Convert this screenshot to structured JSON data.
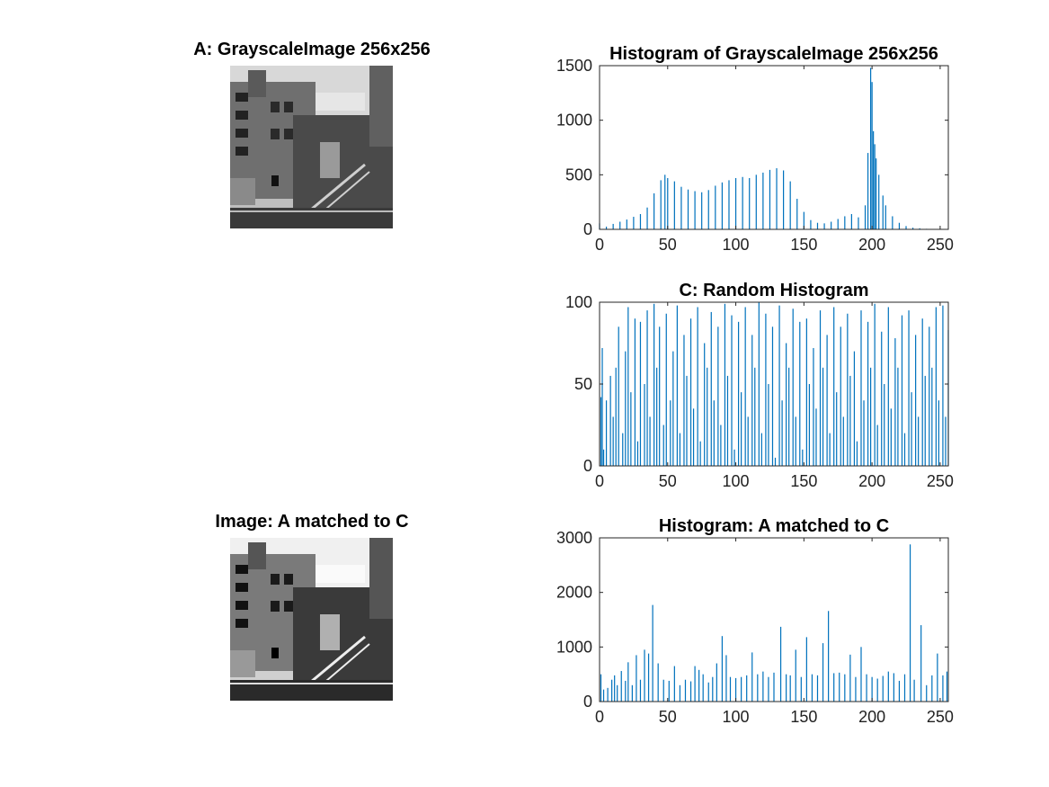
{
  "figure": {
    "panels": {
      "image_a": {
        "title": "A: GrayscaleImage 256x256",
        "icon": "building-photo-icon"
      },
      "image_matched": {
        "title": "Image: A matched to C",
        "icon": "building-photo-icon"
      }
    }
  },
  "chart_data": [
    {
      "type": "bar",
      "title": "Histogram of GrayscaleImage 256x256",
      "xlim": [
        0,
        256
      ],
      "ylim": [
        0,
        1500
      ],
      "xticks": [
        0,
        50,
        100,
        150,
        200,
        250
      ],
      "yticks": [
        0,
        500,
        1000,
        1500
      ],
      "bar_color": "#0072BD",
      "x": [
        0,
        5,
        10,
        15,
        20,
        25,
        30,
        35,
        40,
        45,
        48,
        50,
        55,
        60,
        65,
        70,
        75,
        80,
        85,
        90,
        95,
        100,
        105,
        110,
        115,
        120,
        125,
        130,
        135,
        140,
        145,
        150,
        155,
        160,
        165,
        170,
        175,
        180,
        185,
        190,
        195,
        197,
        199,
        200,
        201,
        202,
        203,
        205,
        208,
        210,
        215,
        220,
        225,
        230,
        235,
        240,
        245,
        250,
        255
      ],
      "values": [
        55,
        25,
        50,
        70,
        90,
        115,
        140,
        200,
        330,
        450,
        500,
        470,
        440,
        390,
        365,
        350,
        340,
        360,
        400,
        430,
        450,
        470,
        480,
        470,
        500,
        520,
        545,
        560,
        540,
        440,
        280,
        160,
        85,
        60,
        55,
        70,
        95,
        120,
        140,
        110,
        220,
        700,
        1480,
        1350,
        900,
        780,
        650,
        500,
        310,
        220,
        120,
        60,
        30,
        15,
        10,
        5,
        3,
        2,
        2
      ]
    },
    {
      "type": "bar",
      "title": "C: Random Histogram",
      "xlim": [
        0,
        256
      ],
      "ylim": [
        0,
        100
      ],
      "xticks": [
        0,
        50,
        100,
        150,
        200,
        250
      ],
      "yticks": [
        0,
        50,
        100
      ],
      "bar_color": "#0072BD",
      "x": [
        1,
        2,
        3,
        5,
        8,
        10,
        12,
        14,
        17,
        19,
        21,
        23,
        26,
        28,
        30,
        33,
        35,
        37,
        40,
        42,
        44,
        47,
        49,
        52,
        54,
        57,
        59,
        62,
        64,
        67,
        69,
        72,
        74,
        77,
        79,
        82,
        84,
        87,
        89,
        92,
        94,
        97,
        99,
        102,
        104,
        107,
        109,
        112,
        114,
        117,
        119,
        122,
        124,
        127,
        129,
        132,
        134,
        137,
        139,
        142,
        144,
        147,
        149,
        152,
        154,
        157,
        159,
        162,
        164,
        167,
        169,
        172,
        174,
        177,
        179,
        182,
        184,
        187,
        189,
        192,
        194,
        197,
        199,
        202,
        204,
        207,
        209,
        212,
        214,
        217,
        219,
        222,
        224,
        227,
        229,
        232,
        234,
        237,
        239,
        242,
        244,
        247,
        249,
        252,
        254,
        256
      ],
      "values": [
        42,
        72,
        10,
        40,
        55,
        30,
        60,
        85,
        20,
        70,
        97,
        45,
        90,
        15,
        88,
        50,
        95,
        30,
        99,
        60,
        85,
        25,
        93,
        40,
        70,
        98,
        20,
        80,
        55,
        90,
        35,
        97,
        15,
        75,
        60,
        94,
        40,
        85,
        25,
        99,
        55,
        92,
        10,
        88,
        45,
        97,
        30,
        80,
        60,
        100,
        20,
        93,
        50,
        85,
        5,
        98,
        40,
        75,
        60,
        96,
        30,
        88,
        10,
        90,
        50,
        72,
        35,
        95,
        60,
        80,
        20,
        97,
        45,
        85,
        30,
        93,
        55,
        70,
        15,
        95,
        40,
        88,
        60,
        99,
        25,
        82,
        50,
        97,
        35,
        78,
        60,
        92,
        20,
        95,
        45,
        80,
        30,
        90,
        55,
        85,
        60,
        97,
        40,
        98,
        30,
        83
      ]
    },
    {
      "type": "bar",
      "title": "Histogram: A matched to C",
      "xlim": [
        0,
        256
      ],
      "ylim": [
        0,
        3000
      ],
      "xticks": [
        0,
        50,
        100,
        150,
        200,
        250
      ],
      "yticks": [
        0,
        1000,
        2000,
        3000
      ],
      "bar_color": "#0072BD",
      "x": [
        1,
        3,
        6,
        9,
        11,
        13,
        16,
        19,
        21,
        24,
        27,
        30,
        33,
        36,
        39,
        43,
        47,
        51,
        55,
        59,
        63,
        67,
        70,
        73,
        76,
        80,
        83,
        86,
        90,
        93,
        96,
        100,
        104,
        108,
        112,
        116,
        120,
        124,
        128,
        133,
        137,
        140,
        144,
        148,
        152,
        156,
        160,
        164,
        168,
        172,
        176,
        180,
        184,
        188,
        192,
        196,
        200,
        204,
        208,
        212,
        216,
        220,
        224,
        228,
        231,
        236,
        240,
        244,
        248,
        252,
        255
      ],
      "values": [
        500,
        220,
        250,
        400,
        480,
        300,
        560,
        380,
        720,
        300,
        850,
        400,
        950,
        880,
        1770,
        700,
        400,
        380,
        650,
        300,
        400,
        370,
        650,
        580,
        500,
        350,
        450,
        700,
        1200,
        850,
        450,
        430,
        450,
        480,
        900,
        500,
        550,
        450,
        530,
        1370,
        500,
        480,
        950,
        450,
        1180,
        500,
        480,
        1070,
        1660,
        520,
        530,
        500,
        860,
        450,
        1000,
        500,
        450,
        420,
        470,
        550,
        520,
        380,
        500,
        2880,
        400,
        1400,
        300,
        480,
        880,
        480,
        550
      ]
    }
  ]
}
